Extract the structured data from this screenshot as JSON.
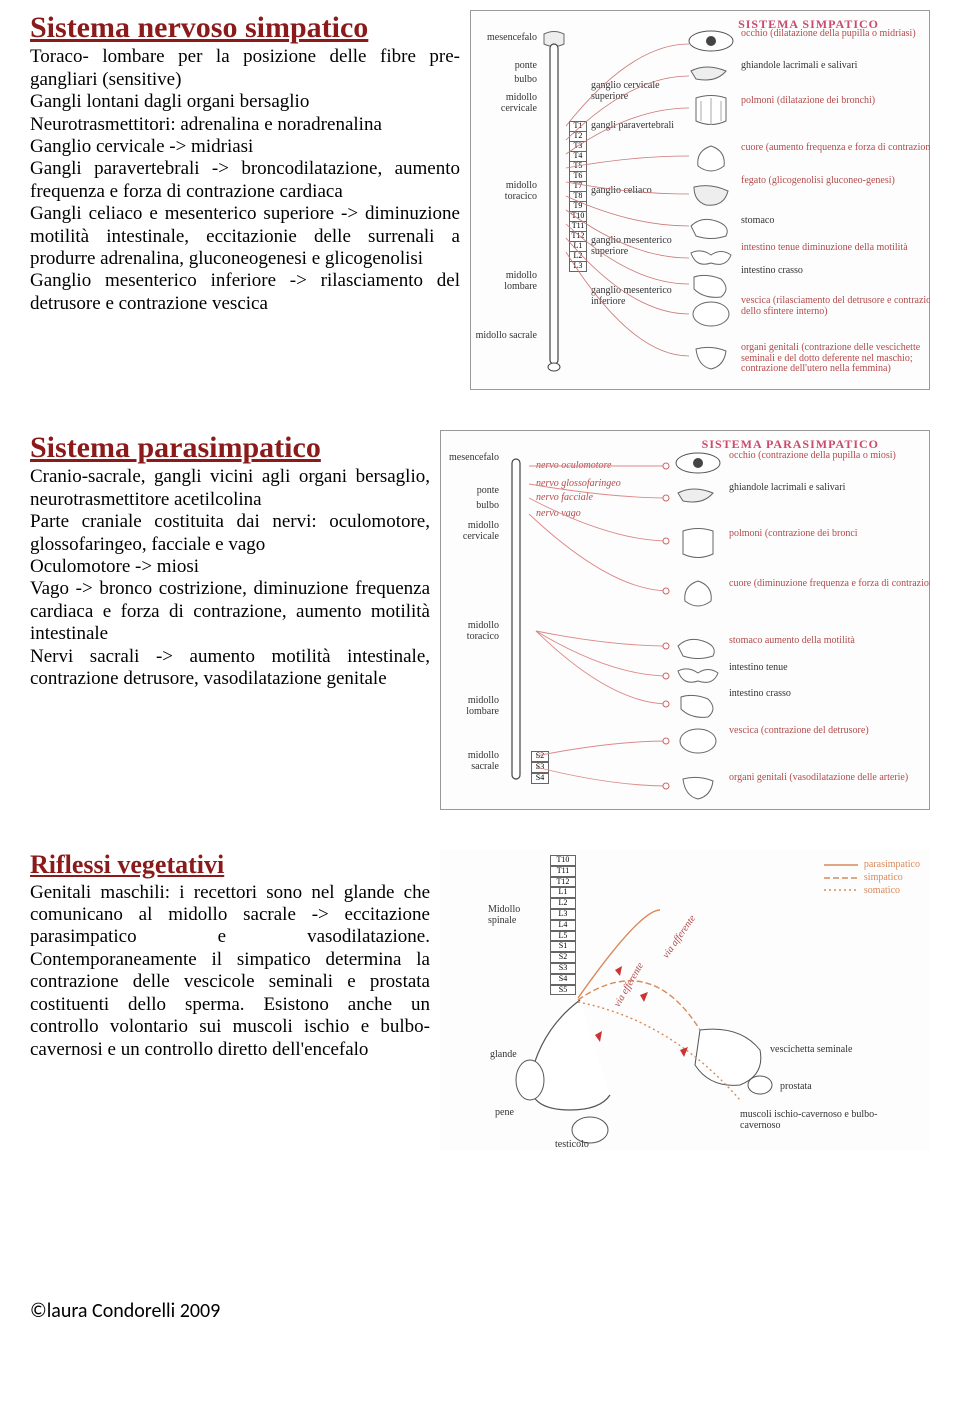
{
  "section1": {
    "title": "Sistema nervoso simpatico",
    "title_color": "#8b1a1a",
    "body": "Toraco- lombare per la posizione delle fibre pre- gangliari (sensitive)\nGangli lontani dagli organi bersaglio\nNeurotrasmettitori: adrenalina e noradrenalina\nGanglio cervicale -> midriasi\nGangli paravertebrali -> broncodilatazione, aumento frequenza e forza di contrazione cardiaca\nGangli celiaco e mesenterico superiore -> diminuzione motilità intestinale, eccitazionie delle surrenali a produrre adrenalina, gluconeogenesi e glicogenolisi\nGanglio mesenterico inferiore -> rilasciamento del detrusore e contrazione vescica",
    "figure": {
      "title": "SISTEMA SIMPATICO",
      "title_color": "#c94b6e",
      "left_labels": [
        "mesencefalo",
        "ponte",
        "bulbo",
        "midollo cervicale",
        "midollo toracico",
        "midollo lombare",
        "midollo sacrale"
      ],
      "segments": [
        "T1",
        "T2",
        "T3",
        "T4",
        "T5",
        "T6",
        "T7",
        "T8",
        "T9",
        "T10",
        "T11",
        "T12",
        "L1",
        "L2",
        "L3"
      ],
      "inner_labels": [
        "ganglio cervicale superiore",
        "gangli paravertebrali",
        "ganglio celiaco",
        "ganglio mesenterico superiore",
        "ganglio mesenterico inferiore"
      ],
      "right_labels": [
        "occhio (dilatazione della pupilla o midriasi)",
        "ghiandole lacrimali e salivari",
        "polmoni (dilatazione dei bronchi)",
        "cuore (aumento frequenza e forza di contrazione)",
        "fegato (glicogenolisi gluconeo-genesi)",
        "stomaco",
        "intestino tenue   diminuzione della motilità",
        "intestino crasso",
        "vescica (rilasciamento del detrusore e contrazione dello sfintere interno)",
        "organi genitali (contrazione delle vescichette seminali e del dotto deferente nel maschio; contrazione dell'utero nella femmina)"
      ]
    }
  },
  "section2": {
    "title": "Sistema parasimpatico",
    "title_color": "#8b1a1a",
    "body": "Cranio-sacrale, gangli vicini agli organi bersaglio, neurotrasmettitore acetilcolina\nParte craniale costituita dai nervi: oculomotore, glossofaringeo, facciale e vago\nOculomotore -> miosi\nVago -> bronco costrizione, diminuzione frequenza cardiaca e forza di contrazione, aumento motilità intestinale\nNervi sacrali -> aumento motilità intestinale, contrazione detrusore, vasodilatazione genitale",
    "figure": {
      "title": "SISTEMA PARASIMPATICO",
      "title_color": "#c94b6e",
      "left_labels": [
        "mesencefalo",
        "ponte",
        "bulbo",
        "midollo cervicale",
        "midollo toracico",
        "midollo lombare",
        "midollo sacrale"
      ],
      "nerves": [
        "nervo oculomotore",
        "nervo glossofaringeo",
        "nervo facciale",
        "nervo vago"
      ],
      "segments": [
        "S2",
        "S3",
        "S4"
      ],
      "right_labels": [
        "occhio (contrazione della pupilla o miosi)",
        "ghiandole lacrimali e salivari",
        "polmoni (contrazione dei bronci",
        "cuore (diminuzione frequenza e forza di contrazione)",
        "stomaco   aumento della motilità",
        "intestino tenue",
        "intestino crasso",
        "vescica (contrazione del detrusore)",
        "organi genitali (vasodilatazione delle arterie)"
      ]
    }
  },
  "section3": {
    "title": "Riflessi vegetativi",
    "title_color": "#8b1a1a",
    "body": "Genitali maschili: i recettori sono nel glande che comunicano al midollo sacrale -> eccitazione parasimpatico e vasodilatazione. Contemporaneamente il simpatico determina la contrazione delle vescicole seminali e prostata costituenti dello sperma. Esistono anche un controllo volontario sui muscoli ischio e bulbo-cavernosi e un controllo diretto dell'encefalo",
    "figure": {
      "segments": [
        "T10",
        "T11",
        "T12",
        "L1",
        "L2",
        "L3",
        "L4",
        "L5",
        "S1",
        "S2",
        "S3",
        "S4",
        "S5"
      ],
      "legend": [
        {
          "label": "parasimpatico",
          "style": "solid",
          "color": "#d88a5a"
        },
        {
          "label": "simpatico",
          "style": "dash",
          "color": "#d88a5a"
        },
        {
          "label": "somatico",
          "style": "dot",
          "color": "#d88a5a"
        }
      ],
      "paths": [
        "via afferente",
        "via efferente"
      ],
      "labels": [
        "Midollo spinale",
        "glande",
        "pene",
        "testicolo",
        "vescichetta seminale",
        "prostata",
        "muscoli ischio-cavernoso e bulbo-cavernoso"
      ]
    }
  },
  "footer": "©laura Condorelli 2009"
}
